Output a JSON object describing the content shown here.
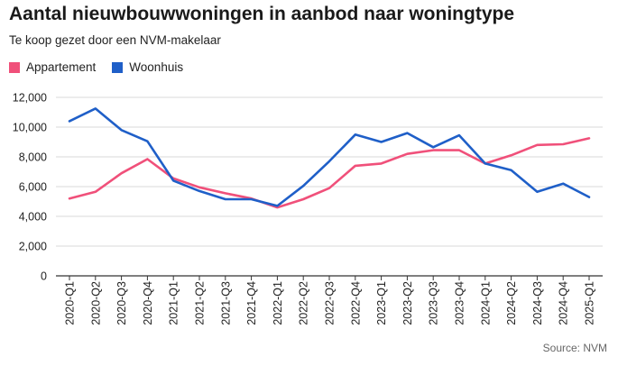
{
  "header": {
    "title": "Aantal nieuwbouwwoningen in aanbod naar woningtype",
    "subtitle": "Te koop gezet door een NVM-makelaar"
  },
  "footer": {
    "source": "Source: NVM"
  },
  "colors": {
    "appartement": "#f0507a",
    "woonhuis": "#1f5fc8",
    "grid": "#d9d9d9",
    "axis": "#333333"
  },
  "chart_data": {
    "type": "line",
    "title": "Aantal nieuwbouwwoningen in aanbod naar woningtype",
    "subtitle": "Te koop gezet door een NVM-makelaar",
    "categories": [
      "2020-Q1",
      "2020-Q2",
      "2020-Q3",
      "2020-Q4",
      "2021-Q1",
      "2021-Q2",
      "2021-Q3",
      "2021-Q4",
      "2022-Q1",
      "2022-Q2",
      "2022-Q3",
      "2022-Q4",
      "2023-Q1",
      "2023-Q2",
      "2023-Q3",
      "2023-Q4",
      "2024-Q1",
      "2024-Q2",
      "2024-Q3",
      "2024-Q4",
      "2025-Q1"
    ],
    "series": [
      {
        "name": "Appartement",
        "values": [
          5200,
          5650,
          6900,
          7850,
          6550,
          5950,
          5550,
          5200,
          4600,
          5150,
          5900,
          7400,
          7550,
          8200,
          8450,
          8450,
          7550,
          8100,
          8800,
          8850,
          9250
        ]
      },
      {
        "name": "Woonhuis",
        "values": [
          10400,
          11250,
          9800,
          9050,
          6400,
          5700,
          5150,
          5150,
          4700,
          6050,
          7700,
          9500,
          9000,
          9600,
          8650,
          9450,
          7550,
          7100,
          5650,
          6200,
          5300
        ]
      }
    ],
    "yticks": [
      "12,000",
      "10,000",
      "8,000",
      "6,000",
      "4,000",
      "2,000",
      "0"
    ],
    "ylim": [
      0,
      12000
    ],
    "legend_position": "top-left",
    "grid": true
  }
}
